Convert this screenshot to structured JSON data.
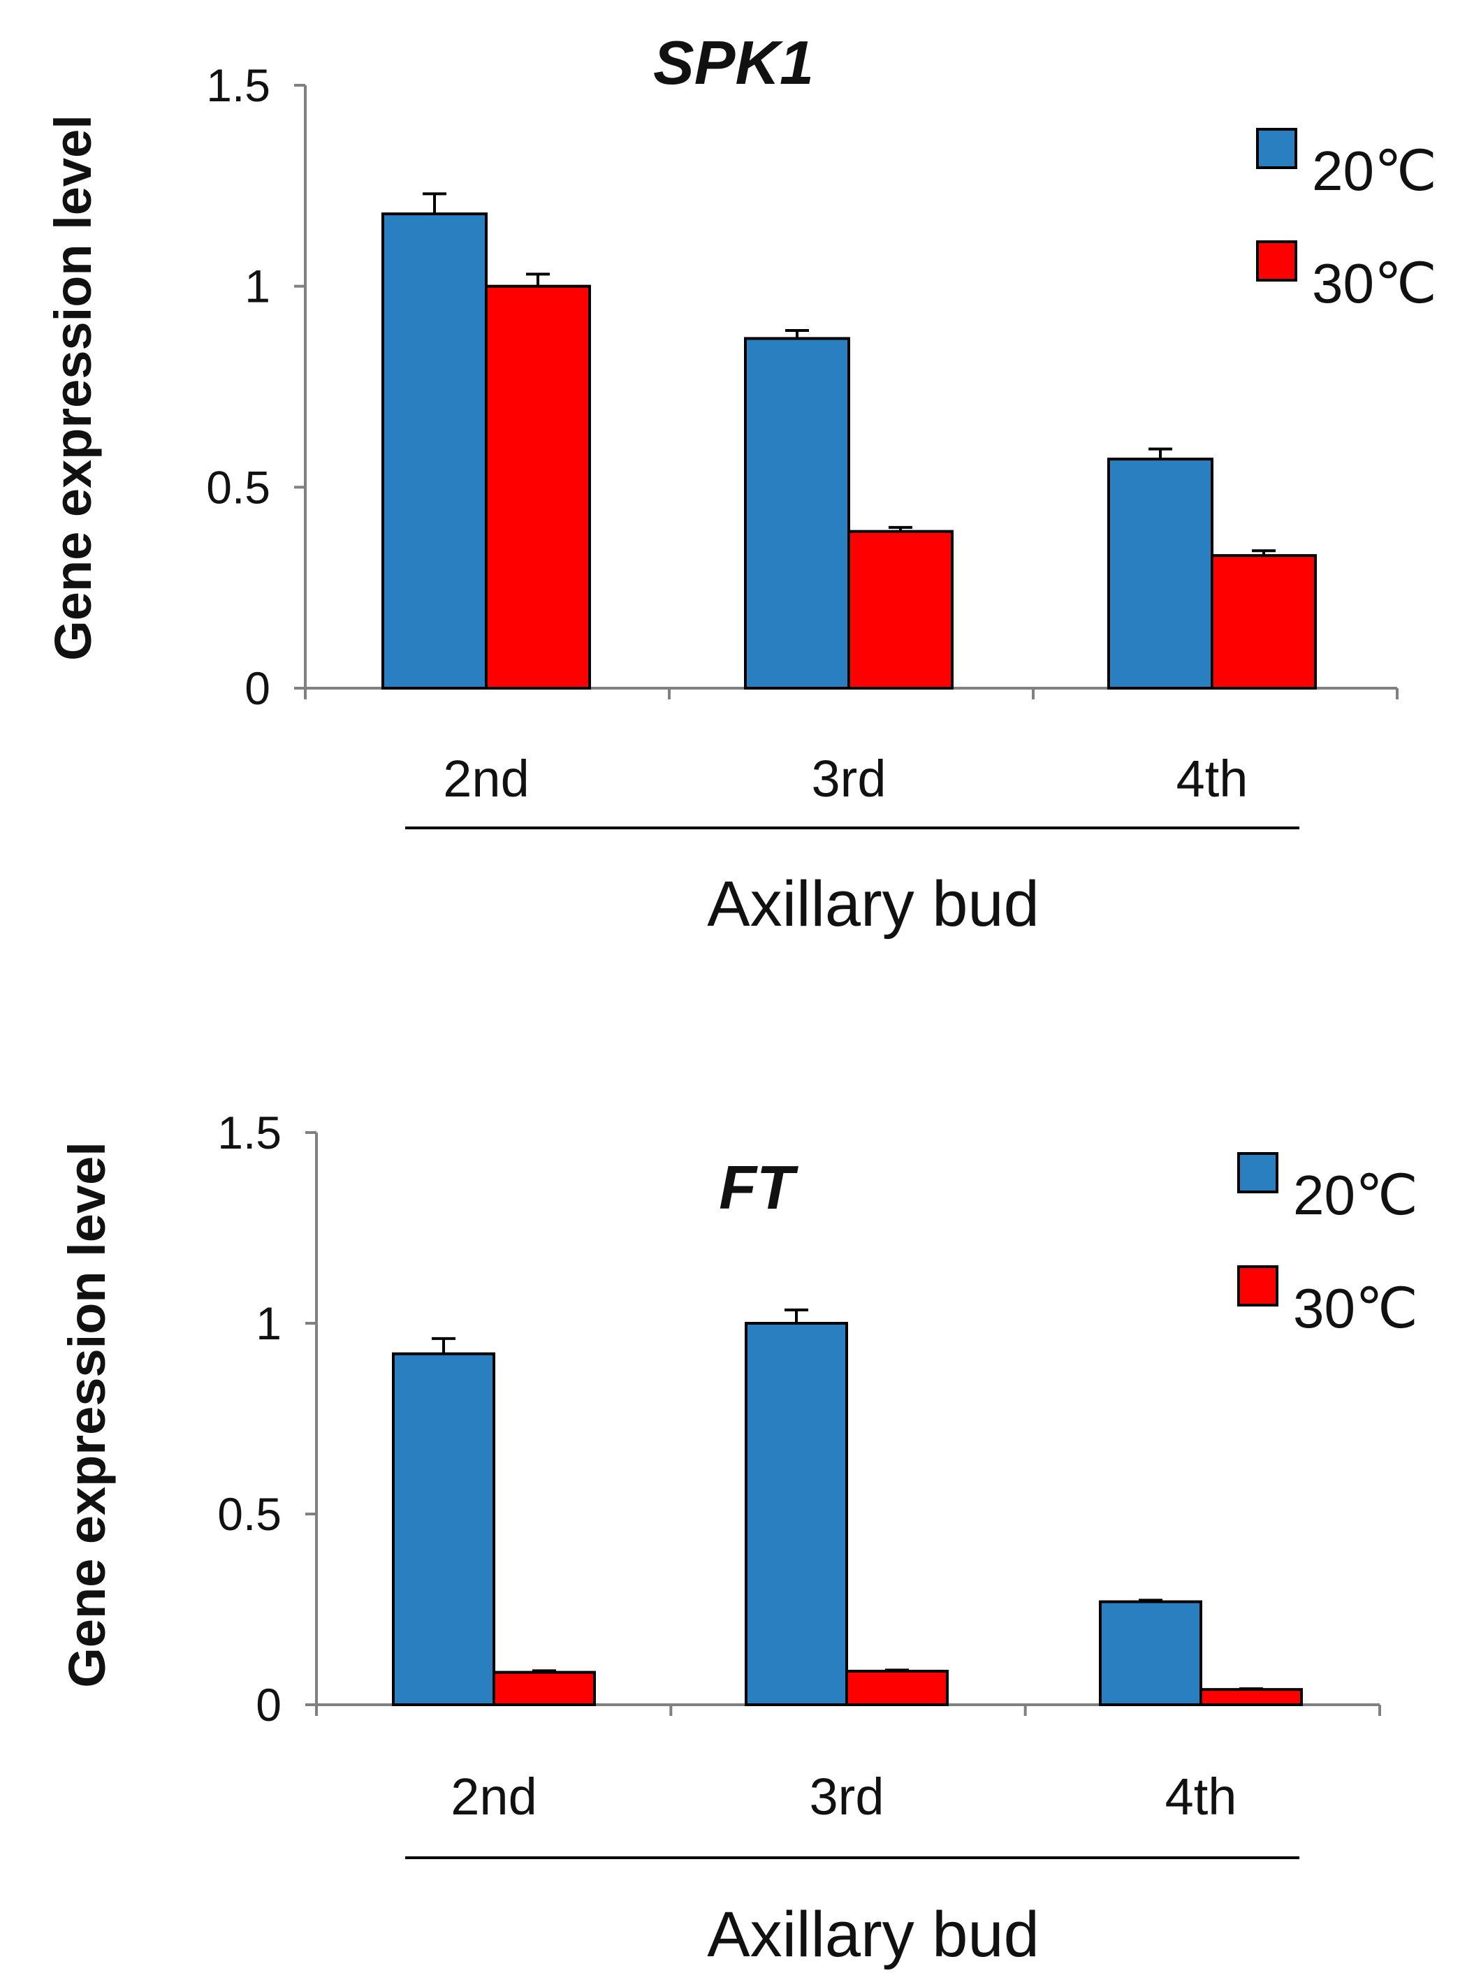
{
  "chart_data": [
    {
      "type": "bar",
      "title": "SPK1",
      "xlabel": "Axillary bud",
      "ylabel": "Gene expression level",
      "ylim": [
        0,
        1.5
      ],
      "yticks": [
        "0",
        "0.5",
        "1",
        "1.5"
      ],
      "categories": [
        "2nd",
        "3rd",
        "4th"
      ],
      "series": [
        {
          "name": "20℃",
          "color": "#2a7fc1",
          "values": [
            1.18,
            0.87,
            0.57
          ],
          "errors": [
            0.05,
            0.02,
            0.025
          ]
        },
        {
          "name": "30℃",
          "color": "#ff0000",
          "values": [
            1.0,
            0.39,
            0.33
          ],
          "errors": [
            0.03,
            0.01,
            0.012
          ]
        }
      ]
    },
    {
      "type": "bar",
      "title": "FT",
      "xlabel": "Axillary bud",
      "ylabel": "Gene expression level",
      "ylim": [
        0,
        1.5
      ],
      "yticks": [
        "0",
        "0.5",
        "1",
        "1.5"
      ],
      "categories": [
        "2nd",
        "3rd",
        "4th"
      ],
      "series": [
        {
          "name": "20℃",
          "color": "#2a7fc1",
          "values": [
            0.92,
            1.0,
            0.27
          ],
          "errors": [
            0.04,
            0.035,
            0.004
          ]
        },
        {
          "name": "30℃",
          "color": "#ff0000",
          "values": [
            0.085,
            0.088,
            0.04
          ],
          "errors": [
            0.004,
            0.003,
            0.002
          ]
        }
      ]
    }
  ]
}
